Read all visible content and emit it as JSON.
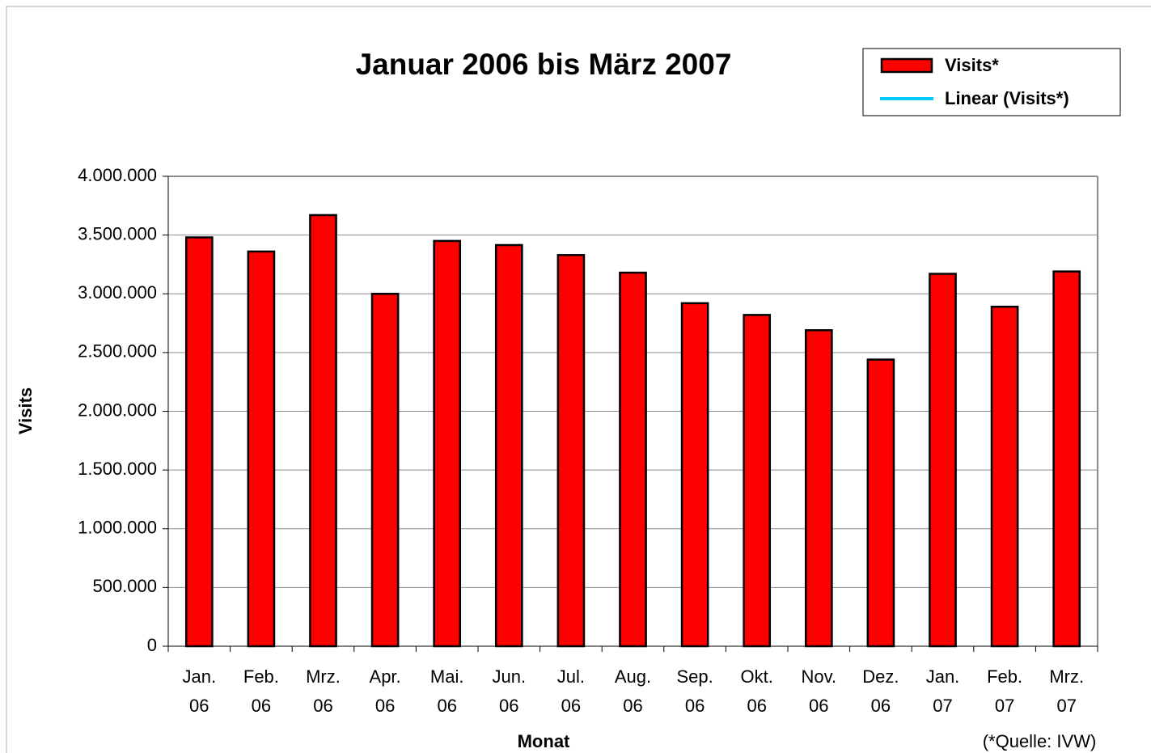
{
  "chart_data": {
    "type": "bar",
    "title": "Januar 2006 bis März 2007",
    "xlabel": "Monat",
    "ylabel": "Visits",
    "source": "(*Quelle: IVW)",
    "categories": [
      "Jan. 06",
      "Feb. 06",
      "Mrz. 06",
      "Apr. 06",
      "Mai. 06",
      "Jun. 06",
      "Jul. 06",
      "Aug. 06",
      "Sep. 06",
      "Okt. 06",
      "Nov. 06",
      "Dez. 06",
      "Jan. 07",
      "Feb. 07",
      "Mrz. 07"
    ],
    "series": [
      {
        "name": "Visits*",
        "color": "#ff0000",
        "values": [
          3480000,
          3360000,
          3670000,
          3000000,
          3450000,
          3415000,
          3330000,
          3180000,
          2920000,
          2820000,
          2690000,
          2440000,
          3170000,
          2890000,
          3190000
        ]
      }
    ],
    "trendline": {
      "name": "Linear (Visits*)",
      "color": "#00ccff"
    },
    "ylim": [
      0,
      4000000
    ],
    "yticks": [
      0,
      {
        "value": 500000,
        "label": "500.000"
      },
      {
        "value": 1000000,
        "label": "1.000.000"
      },
      {
        "value": 1500000,
        "label": "1.500.000"
      },
      {
        "value": 2000000,
        "label": "2.000.000"
      },
      {
        "value": 2500000,
        "label": "2.500.000"
      },
      {
        "value": 3000000,
        "label": "3.000.000"
      },
      {
        "value": 3500000,
        "label": "3.500.000"
      },
      {
        "value": 4000000,
        "label": "4.000.000"
      }
    ],
    "grid": true
  }
}
